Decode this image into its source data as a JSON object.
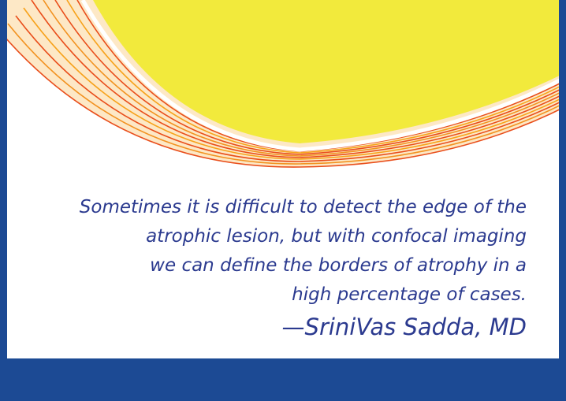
{
  "quote": {
    "lines": [
      "Sometimes it is difficult to detect the edge of the",
      "atrophic lesion, but with confocal imaging",
      "we can define the borders of atrophy in a",
      "high percentage of cases."
    ],
    "attribution": "—SriniVas Sadda, MD"
  }
}
